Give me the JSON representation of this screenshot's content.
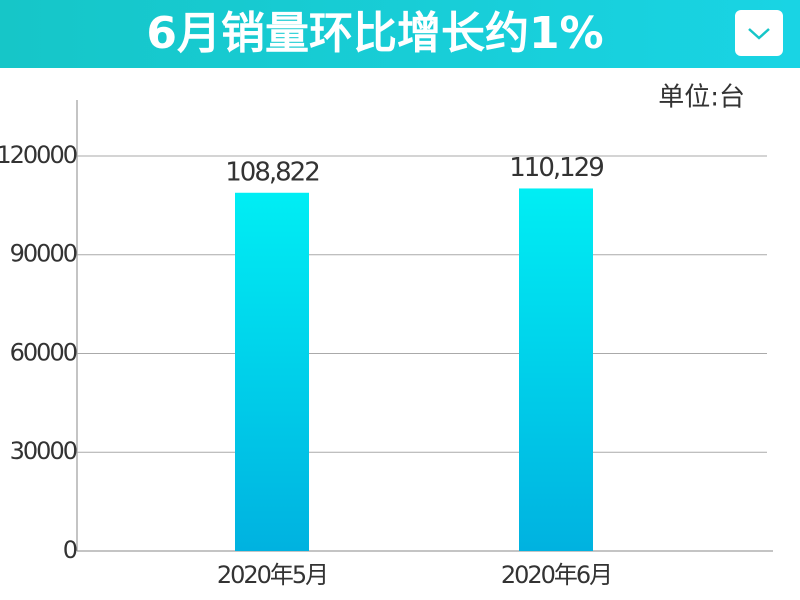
{
  "chart_data": {
    "type": "bar",
    "title": "6月销量环比增长约1%",
    "unit": "单位:台",
    "categories": [
      "2020年5月",
      "2020年6月"
    ],
    "values": [
      108822,
      110129
    ],
    "value_labels": [
      "108,822",
      "110,129"
    ],
    "color": "#00c8ea",
    "ylim": [
      0,
      137000
    ],
    "yticks": [
      0,
      30000,
      60000,
      90000,
      120000
    ],
    "grid": true
  }
}
